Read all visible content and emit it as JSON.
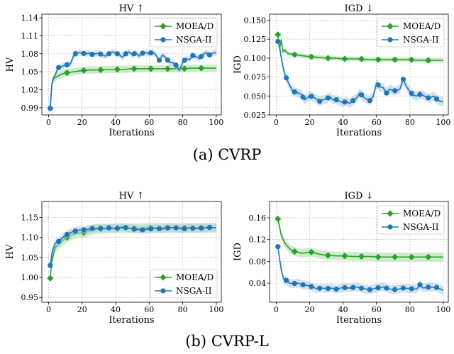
{
  "colors": {
    "moead": "#2ca02c",
    "nsga": "#1f77b4",
    "moead_band": "#a6dba0",
    "nsga_band": "#aec7e8"
  },
  "captions": {
    "top": "(a) CVRP",
    "bottom": "(b) CVRP-L"
  },
  "chart_data": [
    {
      "type": "line",
      "title": "HV ↑",
      "xlabel": "Iterations",
      "ylabel": "HV",
      "xlim": [
        -4,
        103
      ],
      "ylim": [
        0.978,
        1.146
      ],
      "xticks": [
        0,
        20,
        40,
        60,
        80,
        100
      ],
      "yticks": [
        0.99,
        1.02,
        1.05,
        1.08,
        1.11,
        1.14
      ],
      "ytick_labels": [
        "0.99",
        "1.02",
        "1.05",
        "1.08",
        "1.11",
        "1.14"
      ],
      "grid": true,
      "legend_position": "top-right",
      "series": [
        {
          "name": "MOEA/D",
          "color_key": "moead",
          "band_key": "moead_band",
          "marker": "diamond",
          "x": [
            1,
            2,
            3,
            5,
            7,
            10,
            15,
            20,
            25,
            30,
            35,
            40,
            45,
            50,
            55,
            60,
            65,
            70,
            75,
            80,
            85,
            90,
            95,
            100
          ],
          "y": [
            0.989,
            1.03,
            1.038,
            1.042,
            1.045,
            1.048,
            1.05,
            1.052,
            1.053,
            1.053,
            1.054,
            1.054,
            1.054,
            1.055,
            1.055,
            1.055,
            1.055,
            1.055,
            1.055,
            1.055,
            1.056,
            1.056,
            1.056,
            1.056
          ],
          "markers_at": [
            1,
            11,
            21,
            31,
            41,
            51,
            61,
            71,
            81,
            91
          ],
          "band": 0.006
        },
        {
          "name": "NSGA-II",
          "color_key": "nsga",
          "band_key": "nsga_band",
          "marker": "circle",
          "x": [
            1,
            2,
            3,
            4,
            5,
            6,
            8,
            10,
            13,
            15,
            16,
            18,
            20,
            22,
            24,
            26,
            28,
            30,
            32,
            34,
            36,
            38,
            40,
            42,
            44,
            46,
            48,
            50,
            52,
            54,
            56,
            58,
            60,
            62,
            64,
            66,
            68,
            70,
            72,
            74,
            76,
            78,
            80,
            82,
            84,
            86,
            88,
            90,
            92,
            94,
            96,
            98,
            100
          ],
          "y": [
            0.989,
            1.03,
            1.04,
            1.045,
            1.052,
            1.057,
            1.059,
            1.061,
            1.063,
            1.077,
            1.08,
            1.082,
            1.081,
            1.08,
            1.081,
            1.079,
            1.08,
            1.081,
            1.078,
            1.076,
            1.08,
            1.083,
            1.081,
            1.079,
            1.074,
            1.08,
            1.083,
            1.078,
            1.082,
            1.076,
            1.081,
            1.082,
            1.08,
            1.083,
            1.078,
            1.069,
            1.078,
            1.073,
            1.066,
            1.065,
            1.061,
            1.052,
            1.066,
            1.072,
            1.07,
            1.077,
            1.075,
            1.072,
            1.079,
            1.082,
            1.078,
            1.081,
            1.082
          ],
          "markers_at": [
            1,
            6,
            11,
            16,
            21,
            26,
            31,
            36,
            41,
            46,
            51,
            56,
            61,
            66,
            71,
            76,
            81,
            86,
            91,
            96
          ],
          "band": 0.005
        }
      ]
    },
    {
      "type": "line",
      "title": "IGD ↓",
      "xlabel": "Iterations",
      "ylabel": "IGD",
      "xlim": [
        -4,
        103
      ],
      "ylim": [
        0.025,
        0.158
      ],
      "xticks": [
        0,
        20,
        40,
        60,
        80,
        100
      ],
      "yticks": [
        0.025,
        0.05,
        0.075,
        0.1,
        0.125,
        0.15
      ],
      "ytick_labels": [
        "0.025",
        "0.050",
        "0.075",
        "0.100",
        "0.125",
        "0.150"
      ],
      "grid": true,
      "legend_position": "top-right",
      "series": [
        {
          "name": "MOEA/D",
          "color_key": "moead",
          "band_key": "moead_band",
          "marker": "diamond",
          "x": [
            1,
            2,
            3,
            4,
            5,
            7,
            10,
            13,
            16,
            20,
            25,
            30,
            35,
            40,
            45,
            50,
            55,
            60,
            65,
            70,
            75,
            80,
            85,
            90,
            95,
            100
          ],
          "y": [
            0.131,
            0.112,
            0.124,
            0.108,
            0.111,
            0.106,
            0.105,
            0.104,
            0.103,
            0.102,
            0.101,
            0.1,
            0.1,
            0.099,
            0.099,
            0.099,
            0.098,
            0.098,
            0.098,
            0.098,
            0.098,
            0.098,
            0.097,
            0.097,
            0.097,
            0.097
          ],
          "markers_at": [
            1,
            11,
            21,
            31,
            41,
            51,
            61,
            71,
            81,
            91
          ],
          "band": 0.003
        },
        {
          "name": "NSGA-II",
          "color_key": "nsga",
          "band_key": "nsga_band",
          "marker": "circle",
          "x": [
            1,
            2,
            3,
            4,
            5,
            6,
            8,
            10,
            13,
            15,
            17,
            20,
            22,
            24,
            26,
            28,
            30,
            32,
            34,
            36,
            38,
            40,
            42,
            44,
            46,
            48,
            50,
            52,
            54,
            56,
            58,
            60,
            62,
            64,
            66,
            68,
            70,
            72,
            74,
            76,
            78,
            80,
            82,
            84,
            86,
            88,
            90,
            92,
            94,
            96,
            98,
            100
          ],
          "y": [
            0.122,
            0.115,
            0.101,
            0.089,
            0.079,
            0.074,
            0.064,
            0.056,
            0.054,
            0.052,
            0.045,
            0.05,
            0.049,
            0.046,
            0.043,
            0.045,
            0.046,
            0.049,
            0.045,
            0.045,
            0.043,
            0.041,
            0.043,
            0.04,
            0.044,
            0.047,
            0.054,
            0.049,
            0.046,
            0.044,
            0.049,
            0.067,
            0.062,
            0.061,
            0.054,
            0.059,
            0.057,
            0.057,
            0.059,
            0.072,
            0.062,
            0.056,
            0.051,
            0.05,
            0.052,
            0.051,
            0.048,
            0.047,
            0.05,
            0.046,
            0.043,
            0.043
          ],
          "markers_at": [
            1,
            6,
            11,
            16,
            21,
            26,
            31,
            36,
            41,
            46,
            51,
            56,
            61,
            66,
            71,
            76,
            81,
            86,
            91,
            96
          ],
          "band": 0.006
        }
      ]
    },
    {
      "type": "line",
      "title": "HV ↑",
      "xlabel": "Iterations",
      "ylabel": "HV",
      "xlim": [
        -4,
        103
      ],
      "ylim": [
        0.938,
        1.19
      ],
      "xticks": [
        0,
        20,
        40,
        60,
        80,
        100
      ],
      "yticks": [
        0.95,
        1.0,
        1.05,
        1.1,
        1.15
      ],
      "ytick_labels": [
        "0.95",
        "1.00",
        "1.05",
        "1.10",
        "1.15"
      ],
      "grid": true,
      "legend_position": "bottom-right",
      "series": [
        {
          "name": "MOEA/D",
          "color_key": "moead",
          "band_key": "moead_band",
          "marker": "diamond",
          "x": [
            1,
            2,
            3,
            4,
            6,
            8,
            10,
            12,
            15,
            18,
            21,
            24,
            27,
            30,
            35,
            40,
            45,
            50,
            55,
            60,
            65,
            70,
            75,
            80,
            85,
            90,
            95,
            100
          ],
          "y": [
            0.998,
            1.04,
            1.06,
            1.075,
            1.082,
            1.09,
            1.097,
            1.103,
            1.108,
            1.111,
            1.112,
            1.116,
            1.12,
            1.122,
            1.122,
            1.123,
            1.123,
            1.123,
            1.123,
            1.124,
            1.124,
            1.124,
            1.124,
            1.124,
            1.124,
            1.124,
            1.124,
            1.124
          ],
          "markers_at": [
            1,
            11,
            21,
            31,
            41,
            51,
            61,
            71,
            81,
            91
          ],
          "band": 0.012
        },
        {
          "name": "NSGA-II",
          "color_key": "nsga",
          "band_key": "nsga_band",
          "marker": "circle",
          "x": [
            1,
            2,
            3,
            4,
            6,
            8,
            10,
            12,
            15,
            18,
            21,
            24,
            27,
            30,
            33,
            36,
            40,
            44,
            48,
            52,
            56,
            60,
            64,
            68,
            72,
            76,
            80,
            84,
            88,
            92,
            96,
            100
          ],
          "y": [
            1.03,
            1.06,
            1.075,
            1.085,
            1.09,
            1.098,
            1.105,
            1.11,
            1.115,
            1.118,
            1.119,
            1.121,
            1.123,
            1.123,
            1.122,
            1.124,
            1.122,
            1.126,
            1.123,
            1.12,
            1.119,
            1.121,
            1.123,
            1.121,
            1.125,
            1.124,
            1.121,
            1.124,
            1.122,
            1.124,
            1.125,
            1.124
          ],
          "markers_at": [
            1,
            6,
            11,
            16,
            21,
            26,
            31,
            36,
            41,
            46,
            51,
            56,
            61,
            66,
            71,
            76,
            81,
            86,
            91,
            96
          ],
          "band": 0.01
        }
      ]
    },
    {
      "type": "line",
      "title": "IGD ↓",
      "xlabel": "Iterations",
      "ylabel": "IGD",
      "xlim": [
        -4,
        103
      ],
      "ylim": [
        0.005,
        0.19
      ],
      "xticks": [
        0,
        20,
        40,
        60,
        80,
        100
      ],
      "yticks": [
        0.04,
        0.08,
        0.12,
        0.16
      ],
      "ytick_labels": [
        "0.04",
        "0.08",
        "0.12",
        "0.16"
      ],
      "grid": true,
      "legend_position": "top-right",
      "series": [
        {
          "name": "MOEA/D",
          "color_key": "moead",
          "band_key": "moead_band",
          "marker": "diamond",
          "x": [
            1,
            3,
            5,
            8,
            11,
            15,
            21,
            26,
            31,
            36,
            41,
            46,
            51,
            56,
            61,
            66,
            71,
            76,
            81,
            86,
            91,
            96,
            100
          ],
          "y": [
            0.158,
            0.128,
            0.114,
            0.103,
            0.098,
            0.095,
            0.097,
            0.093,
            0.091,
            0.09,
            0.09,
            0.089,
            0.089,
            0.089,
            0.088,
            0.088,
            0.088,
            0.088,
            0.088,
            0.088,
            0.088,
            0.088,
            0.088
          ],
          "markers_at": [
            1,
            11,
            21,
            31,
            41,
            51,
            61,
            71,
            81,
            91
          ],
          "band": 0.008
        },
        {
          "name": "NSGA-II",
          "color_key": "nsga",
          "band_key": "nsga_band",
          "marker": "circle",
          "x": [
            1,
            2,
            3,
            4,
            5,
            6,
            8,
            10,
            13,
            16,
            20,
            24,
            27,
            30,
            33,
            36,
            40,
            44,
            48,
            52,
            56,
            60,
            64,
            68,
            72,
            76,
            80,
            84,
            86,
            88,
            92,
            96,
            100
          ],
          "y": [
            0.107,
            0.085,
            0.065,
            0.052,
            0.044,
            0.045,
            0.04,
            0.039,
            0.04,
            0.037,
            0.035,
            0.03,
            0.031,
            0.03,
            0.031,
            0.029,
            0.032,
            0.031,
            0.033,
            0.03,
            0.028,
            0.031,
            0.033,
            0.029,
            0.028,
            0.031,
            0.03,
            0.029,
            0.037,
            0.031,
            0.033,
            0.032,
            0.027
          ],
          "markers_at": [
            1,
            6,
            11,
            16,
            21,
            26,
            31,
            36,
            41,
            46,
            51,
            56,
            61,
            66,
            71,
            76,
            81,
            86,
            91,
            96
          ],
          "band": 0.008
        }
      ]
    }
  ]
}
